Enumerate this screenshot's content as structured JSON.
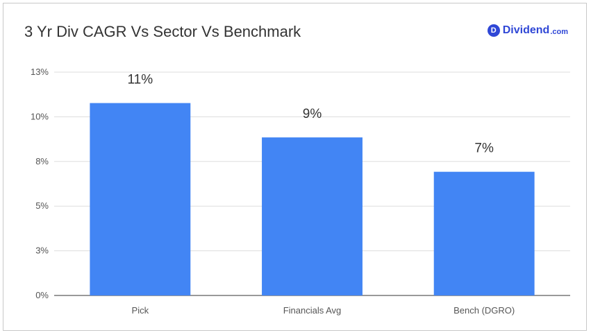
{
  "title": "3 Yr Div CAGR Vs Sector Vs Benchmark",
  "logo": {
    "badge_letter": "D",
    "word": "Dividend",
    "tld": ".com",
    "icon": "dividend-logo-icon",
    "color": "#2f47d6"
  },
  "chart_data": {
    "type": "bar",
    "title": "3 Yr Div CAGR Vs Sector Vs Benchmark",
    "categories": [
      "Pick",
      "Financials Avg",
      "Bench (DGRO)"
    ],
    "values": [
      11.2,
      9.2,
      7.2
    ],
    "data_labels": [
      "11%",
      "9%",
      "7%"
    ],
    "ylim": [
      0,
      13
    ],
    "y_ticks": [
      0,
      2.6,
      5.2,
      7.8,
      10.4,
      13
    ],
    "y_tick_labels": [
      "0%",
      "3%",
      "5%",
      "8%",
      "10%",
      "13%"
    ],
    "bar_color": "#4285f4",
    "grid": true,
    "xlabel": "",
    "ylabel": ""
  }
}
